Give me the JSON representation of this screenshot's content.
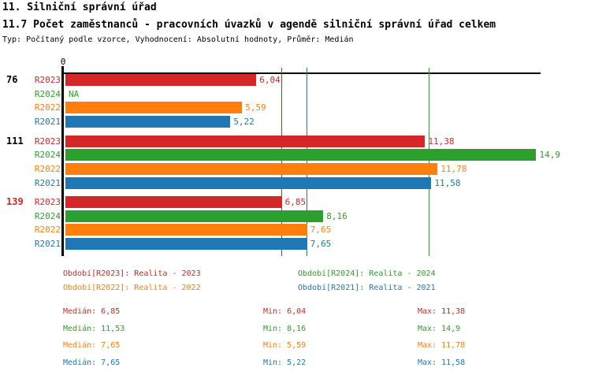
{
  "title": "11. Silniční správní úřad",
  "subtitle": "11.7 Počet zaměstnanců - pracovních úvazků v agendě silniční správní úřad celkem",
  "meta": "Typ: Počítaný podle vzorce, Vyhodnocení: Absolutní hodnoty, Průměr: Medián",
  "colors": {
    "R2023": "#d62728",
    "R2024": "#2ca02c",
    "R2022": "#ff7f0e",
    "R2021": "#1f77b4",
    "axis": "#000000",
    "background": "#ffffff"
  },
  "chart_data": {
    "type": "bar",
    "orientation": "horizontal",
    "axis_zero_label": "0",
    "xlim": [
      0,
      15.2
    ],
    "grid": false,
    "categories": [
      {
        "label": "76",
        "label_color": "#000000"
      },
      {
        "label": "111",
        "label_color": "#000000"
      },
      {
        "label": "139",
        "label_color": "#d62728"
      }
    ],
    "series": [
      {
        "name": "R2023",
        "color": "#d62728",
        "values": [
          6.04,
          11.38,
          6.85
        ],
        "value_labels": [
          "6,04",
          "11,38",
          "6,85"
        ]
      },
      {
        "name": "R2024",
        "color": "#2ca02c",
        "values": [
          null,
          14.9,
          8.16
        ],
        "value_labels": [
          "NA",
          "14,9",
          "8,16"
        ]
      },
      {
        "name": "R2022",
        "color": "#ff7f0e",
        "values": [
          5.59,
          11.78,
          7.65
        ],
        "value_labels": [
          "5,59",
          "11,78",
          "7,65"
        ]
      },
      {
        "name": "R2021",
        "color": "#1f77b4",
        "values": [
          5.22,
          11.58,
          7.65
        ],
        "value_labels": [
          "5,22",
          "11,58",
          "7,65"
        ]
      }
    ],
    "reference_lines": [
      {
        "series": "R2022",
        "value": 7.65,
        "label": "Medián R2022"
      },
      {
        "series": "R2021",
        "value": 7.65,
        "label": "Medián R2021"
      },
      {
        "series": "R2023",
        "value": 6.85,
        "label": "Medián R2023"
      },
      {
        "series": "R2024",
        "value": 11.53,
        "label": "Medián R2024"
      }
    ]
  },
  "legend": {
    "items": [
      {
        "series": "R2023",
        "label": "Období[R2023]: Realita - 2023"
      },
      {
        "series": "R2024",
        "label": "Období[R2024]: Realita - 2024"
      },
      {
        "series": "R2022",
        "label": "Období[R2022]: Realita - 2022"
      },
      {
        "series": "R2021",
        "label": "Období[R2021]: Realita - 2021"
      }
    ]
  },
  "stats": {
    "rows": [
      {
        "series": "R2023",
        "median": "Medián: 6,85",
        "min": "Min: 6,04",
        "max": "Max: 11,38"
      },
      {
        "series": "R2024",
        "median": "Medián: 11,53",
        "min": "Min: 8,16",
        "max": "Max: 14,9"
      },
      {
        "series": "R2022",
        "median": "Medián: 7,65",
        "min": "Min: 5,59",
        "max": "Max: 11,78"
      },
      {
        "series": "R2021",
        "median": "Medián: 7,65",
        "min": "Min: 5,22",
        "max": "Max: 11,58"
      }
    ]
  }
}
